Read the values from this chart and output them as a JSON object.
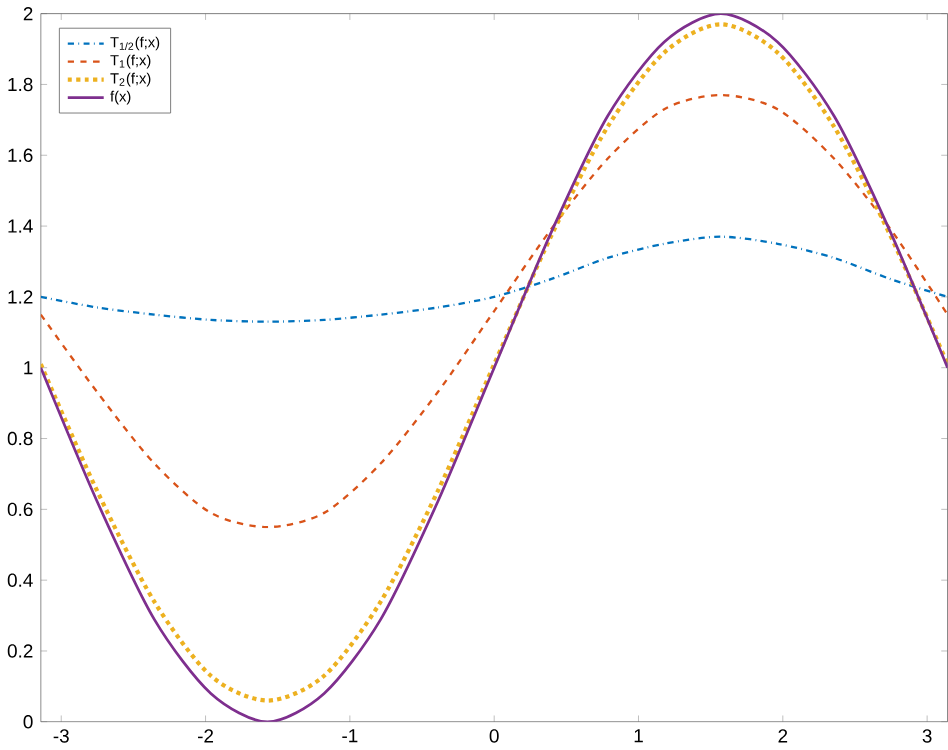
{
  "chart_data": {
    "type": "line",
    "x": [
      -3.1416,
      -2.7489,
      -2.3562,
      -1.9635,
      -1.5708,
      -1.1781,
      -0.7854,
      -0.3927,
      0,
      0.3927,
      0.7854,
      1.1781,
      1.5708,
      1.9635,
      2.3562,
      2.7489,
      3.1416
    ],
    "series": [
      {
        "name": "T$_{1/2}$(f;x)",
        "color": "#0072bd",
        "line_style": "dashdot",
        "values": [
          1.2,
          1.17,
          1.15,
          1.135,
          1.13,
          1.135,
          1.15,
          1.17,
          1.2,
          1.25,
          1.31,
          1.35,
          1.37,
          1.35,
          1.31,
          1.25,
          1.2
        ]
      },
      {
        "name": "T$_{1}$(f;x)",
        "color": "#d95319",
        "line_style": "dashed",
        "values": [
          1.15,
          0.93,
          0.73,
          0.59,
          0.55,
          0.59,
          0.73,
          0.93,
          1.16,
          1.39,
          1.59,
          1.73,
          1.77,
          1.73,
          1.59,
          1.39,
          1.15
        ]
      },
      {
        "name": "T$_{2}$(f;x)",
        "color": "#edb120",
        "line_style": "dotted",
        "values": [
          1.01,
          0.65,
          0.34,
          0.13,
          0.06,
          0.13,
          0.34,
          0.65,
          1.01,
          1.37,
          1.68,
          1.89,
          1.97,
          1.89,
          1.68,
          1.37,
          1.01
        ]
      },
      {
        "name": "f(x)",
        "color": "#7e2f8e",
        "line_style": "solid",
        "values": [
          1,
          0.62,
          0.29,
          0.08,
          0,
          0.08,
          0.29,
          0.62,
          1,
          1.38,
          1.71,
          1.92,
          2,
          1.92,
          1.71,
          1.38,
          1
        ]
      }
    ],
    "xlim": [
      -3.1416,
      3.1416
    ],
    "xticks": [
      -3,
      -2,
      -1,
      0,
      1,
      2,
      3
    ],
    "ylim": [
      0,
      2
    ],
    "yticks": [
      0,
      0.2,
      0.4,
      0.6,
      0.8,
      1,
      1.2,
      1.4,
      1.6,
      1.8,
      2
    ],
    "grid": false,
    "legend": "top left",
    "marker": "none"
  }
}
